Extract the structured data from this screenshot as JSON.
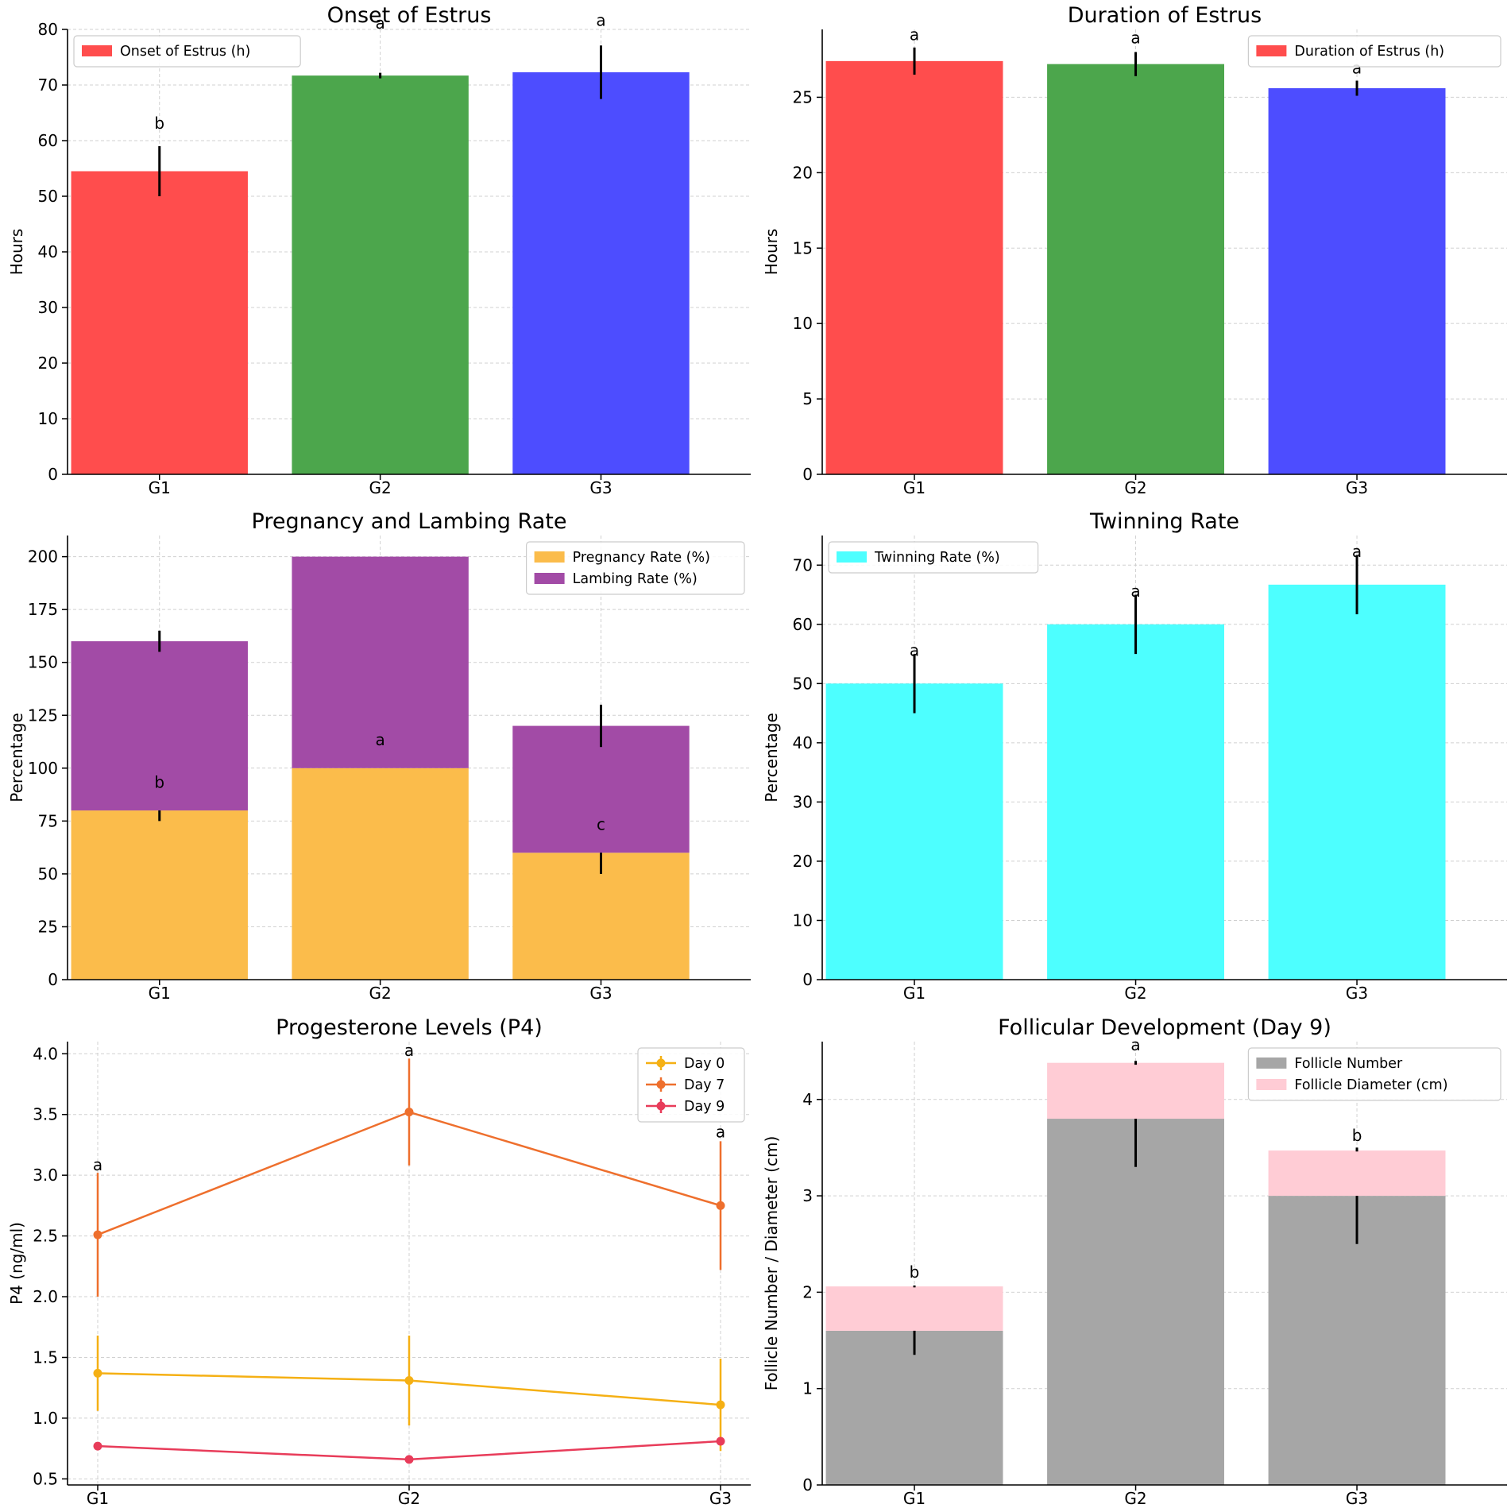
{
  "chart_data": [
    {
      "id": "onset",
      "type": "bar",
      "title": "Onset of Estrus",
      "xlabel": "",
      "ylabel": "Hours",
      "categories": [
        "G1",
        "G2",
        "G3"
      ],
      "ylim": [
        0,
        80
      ],
      "yticks": [
        0,
        10,
        20,
        30,
        40,
        50,
        60,
        70,
        80
      ],
      "grid": true,
      "legend": "top-left",
      "series": [
        {
          "name": "Onset of Estrus (h)",
          "values": [
            54.5,
            71.7,
            72.3
          ],
          "errors": [
            4.5,
            0.5,
            4.8
          ],
          "colors": [
            "#ff4d4d",
            "#4ca64c",
            "#4d4dff"
          ]
        }
      ],
      "annotations": [
        {
          "category": 0,
          "y": 63,
          "text": "b"
        },
        {
          "category": 1,
          "y": 81,
          "text": "a"
        },
        {
          "category": 2,
          "y": 81.5,
          "text": "a"
        }
      ]
    },
    {
      "id": "duration",
      "type": "bar",
      "title": "Duration of Estrus",
      "xlabel": "",
      "ylabel": "Hours",
      "categories": [
        "G1",
        "G2",
        "G3"
      ],
      "ylim": [
        0,
        29.5
      ],
      "yticks": [
        0,
        5,
        10,
        15,
        20,
        25
      ],
      "grid": true,
      "legend": "top-right",
      "series": [
        {
          "name": "Duration of Estrus (h)",
          "values": [
            27.4,
            27.2,
            25.6
          ],
          "errors": [
            0.9,
            0.8,
            0.5
          ],
          "colors": [
            "#ff4d4d",
            "#4ca64c",
            "#4d4dff"
          ]
        }
      ],
      "annotations": [
        {
          "category": 0,
          "y": 29.1,
          "text": "a"
        },
        {
          "category": 1,
          "y": 28.9,
          "text": "a"
        },
        {
          "category": 2,
          "y": 26.9,
          "text": "a"
        }
      ]
    },
    {
      "id": "pregnancy",
      "type": "bar",
      "stacked": true,
      "title": "Pregnancy and Lambing Rate",
      "xlabel": "",
      "ylabel": "Percentage",
      "categories": [
        "G1",
        "G2",
        "G3"
      ],
      "ylim": [
        0,
        210
      ],
      "yticks": [
        0,
        25,
        50,
        75,
        100,
        125,
        150,
        175,
        200
      ],
      "grid": true,
      "legend": "top-right",
      "series": [
        {
          "name": "Pregnancy Rate (%)",
          "values": [
            80,
            100,
            60
          ],
          "errors": [
            5,
            0,
            10
          ],
          "colors": [
            "#fbbc4b",
            "#fbbc4b",
            "#fbbc4b"
          ]
        },
        {
          "name": "Lambing Rate (%)",
          "values": [
            80,
            100,
            60
          ],
          "errors": [
            5,
            0,
            10
          ],
          "colors": [
            "#a24ba6",
            "#a24ba6",
            "#a24ba6"
          ]
        }
      ],
      "annotations": [
        {
          "category": 0,
          "y": 93,
          "text": "b"
        },
        {
          "category": 1,
          "y": 113,
          "text": "a"
        },
        {
          "category": 2,
          "y": 73,
          "text": "c"
        }
      ]
    },
    {
      "id": "twinning",
      "type": "bar",
      "title": "Twinning Rate",
      "xlabel": "",
      "ylabel": "Percentage",
      "categories": [
        "G1",
        "G2",
        "G3"
      ],
      "ylim": [
        0,
        75
      ],
      "yticks": [
        0,
        10,
        20,
        30,
        40,
        50,
        60,
        70
      ],
      "grid": true,
      "legend": "top-left",
      "series": [
        {
          "name": "Twinning Rate (%)",
          "values": [
            50,
            60,
            66.7
          ],
          "errors": [
            5,
            5,
            5
          ],
          "colors": [
            "#4dffff",
            "#4dffff",
            "#4dffff"
          ]
        }
      ],
      "annotations": [
        {
          "category": 0,
          "y": 55.5,
          "text": "a"
        },
        {
          "category": 1,
          "y": 65.5,
          "text": "a"
        },
        {
          "category": 2,
          "y": 72.2,
          "text": "a"
        }
      ]
    },
    {
      "id": "progesterone",
      "type": "line",
      "title": "Progesterone Levels (P4)",
      "xlabel": "",
      "ylabel": "P4 (ng/ml)",
      "categories": [
        "G1",
        "G2",
        "G3"
      ],
      "ylim": [
        0.45,
        4.1
      ],
      "yticks": [
        0.5,
        1.0,
        1.5,
        2.0,
        2.5,
        3.0,
        3.5,
        4.0
      ],
      "grid": true,
      "legend": "top-right",
      "series": [
        {
          "name": "Day 0",
          "values": [
            1.37,
            1.31,
            1.11
          ],
          "errors": [
            0.31,
            0.37,
            0.38
          ],
          "color": "#f5b014"
        },
        {
          "name": "Day 7",
          "values": [
            2.51,
            3.52,
            2.75
          ],
          "errors": [
            0.51,
            0.44,
            0.53
          ],
          "color": "#ee6f2d"
        },
        {
          "name": "Day 9",
          "values": [
            0.77,
            0.66,
            0.81
          ],
          "errors": [
            0.02,
            0.02,
            0.02
          ],
          "color": "#e83c5a"
        }
      ],
      "annotations": [
        {
          "category": 0,
          "y": 3.08,
          "text": "a"
        },
        {
          "category": 1,
          "y": 4.02,
          "text": "a"
        },
        {
          "category": 2,
          "y": 3.35,
          "text": "a"
        }
      ]
    },
    {
      "id": "follicular",
      "type": "bar",
      "stacked": true,
      "title": "Follicular Development (Day 9)",
      "xlabel": "",
      "ylabel": "Follicle Number / Diameter (cm)",
      "categories": [
        "G1",
        "G2",
        "G3"
      ],
      "ylim": [
        0,
        4.6
      ],
      "yticks": [
        0,
        1,
        2,
        3,
        4
      ],
      "grid": true,
      "legend": "top-right",
      "series": [
        {
          "name": "Follicle Number",
          "values": [
            1.6,
            3.8,
            3.0
          ],
          "errors": [
            0.25,
            0.5,
            0.5
          ],
          "colors": [
            "#a6a6a6",
            "#a6a6a6",
            "#a6a6a6"
          ]
        },
        {
          "name": "Follicle Diameter (cm)",
          "values": [
            0.46,
            0.58,
            0.47
          ],
          "errors": [
            0.01,
            0.02,
            0.01
          ],
          "colors": [
            "#ffccd5",
            "#ffccd5",
            "#ffccd5"
          ]
        }
      ],
      "annotations": [
        {
          "category": 0,
          "y": 2.2,
          "text": "b"
        },
        {
          "category": 1,
          "y": 4.56,
          "text": "a"
        },
        {
          "category": 2,
          "y": 3.62,
          "text": "b"
        }
      ]
    }
  ]
}
